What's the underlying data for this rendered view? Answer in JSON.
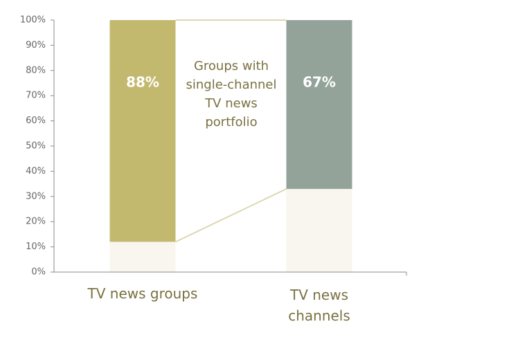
{
  "chart_data": {
    "type": "stacked-bar",
    "categories": [
      "TV news groups",
      "TV news channels"
    ],
    "series": [
      {
        "color": "#f8f6ee",
        "values": [
          12,
          33
        ]
      },
      {
        "color": [
          "#c2b96f",
          "#93a39a"
        ],
        "values": [
          88,
          67
        ],
        "value_labels": [
          "88%",
          "67%"
        ]
      }
    ],
    "annotation": "Groups with single-channel TV news portfolio",
    "ylim": [
      0,
      100
    ],
    "yticks": [
      {
        "value": 0,
        "label": "0%"
      },
      {
        "value": 10,
        "label": "10%"
      },
      {
        "value": 20,
        "label": "20%"
      },
      {
        "value": 30,
        "label": "30%"
      },
      {
        "value": 40,
        "label": "40%"
      },
      {
        "value": 50,
        "label": "50%"
      },
      {
        "value": 60,
        "label": "60%"
      },
      {
        "value": 70,
        "label": "70%"
      },
      {
        "value": 80,
        "label": "80%"
      },
      {
        "value": 90,
        "label": "90%"
      },
      {
        "value": 100,
        "label": "100%"
      }
    ]
  }
}
